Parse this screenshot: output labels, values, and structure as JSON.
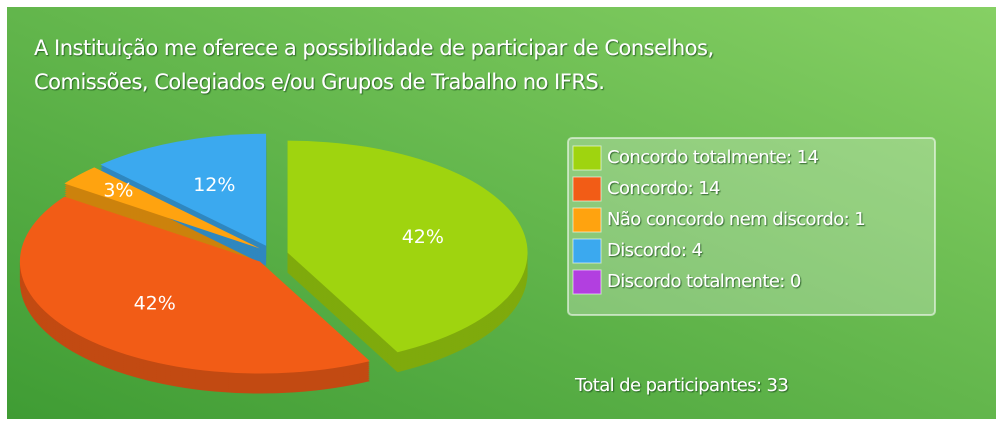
{
  "chart_data": {
    "type": "pie",
    "title": [
      "A Instituição me oferece a possibilidade de participar de Conselhos,",
      "Comissões, Colegiados e/ou Grupos de Trabalho no IFRS."
    ],
    "categories": [
      "Concordo totalmente: 14",
      "Concordo: 14",
      "Não concordo nem discordo: 1",
      "Discordo: 4",
      "Discordo totalmente: 0"
    ],
    "values": [
      42,
      42,
      3,
      12,
      0
    ],
    "value_labels": [
      "42%",
      "42%",
      "3%",
      "12%",
      null
    ],
    "colors": [
      "#9fd40f",
      "#f25c16",
      "#ffa30f",
      "#3ba9ef",
      "#b23fe0"
    ],
    "total": "Total de participantes: 33"
  }
}
